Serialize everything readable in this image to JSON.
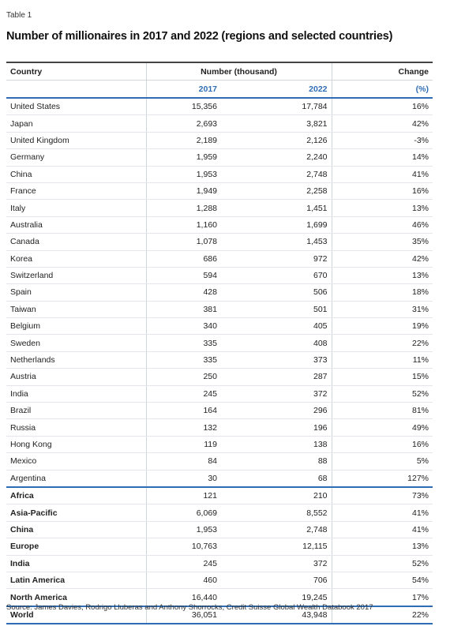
{
  "table_label": "Table 1",
  "title": "Number of millionaires in 2017 and 2022 (regions and selected countries)",
  "header": {
    "country": "Country",
    "number": "Number (thousand)",
    "change": "Change"
  },
  "subheader": [
    "2017",
    "2022",
    "(%)"
  ],
  "countries": [
    [
      "United States",
      "15,356",
      "17,784",
      "16%"
    ],
    [
      "Japan",
      "2,693",
      "3,821",
      "42%"
    ],
    [
      "United Kingdom",
      "2,189",
      "2,126",
      "-3%"
    ],
    [
      "Germany",
      "1,959",
      "2,240",
      "14%"
    ],
    [
      "China",
      "1,953",
      "2,748",
      "41%"
    ],
    [
      "France",
      "1,949",
      "2,258",
      "16%"
    ],
    [
      "Italy",
      "1,288",
      "1,451",
      "13%"
    ],
    [
      "Australia",
      "1,160",
      "1,699",
      "46%"
    ],
    [
      "Canada",
      "1,078",
      "1,453",
      "35%"
    ],
    [
      "Korea",
      "686",
      "972",
      "42%"
    ],
    [
      "Switzerland",
      "594",
      "670",
      "13%"
    ],
    [
      "Spain",
      "428",
      "506",
      "18%"
    ],
    [
      "Taiwan",
      "381",
      "501",
      "31%"
    ],
    [
      "Belgium",
      "340",
      "405",
      "19%"
    ],
    [
      "Sweden",
      "335",
      "408",
      "22%"
    ],
    [
      "Netherlands",
      "335",
      "373",
      "11%"
    ],
    [
      "Austria",
      "250",
      "287",
      "15%"
    ],
    [
      "India",
      "245",
      "372",
      "52%"
    ],
    [
      "Brazil",
      "164",
      "296",
      "81%"
    ],
    [
      "Russia",
      "132",
      "196",
      "49%"
    ],
    [
      "Hong Kong",
      "119",
      "138",
      "16%"
    ],
    [
      "Mexico",
      "84",
      "88",
      "5%"
    ],
    [
      "Argentina",
      "30",
      "68",
      "127%"
    ]
  ],
  "regions": [
    [
      "Africa",
      "121",
      "210",
      "73%"
    ],
    [
      "Asia-Pacific",
      "6,069",
      "8,552",
      "41%"
    ],
    [
      "China",
      "1,953",
      "2,748",
      "41%"
    ],
    [
      "Europe",
      "10,763",
      "12,115",
      "13%"
    ],
    [
      "India",
      "245",
      "372",
      "52%"
    ],
    [
      "Latin America",
      "460",
      "706",
      "54%"
    ],
    [
      "North America",
      "16,440",
      "19,245",
      "17%"
    ]
  ],
  "world": [
    "World",
    "36,051",
    "43,948",
    "22%"
  ],
  "source": "Source: James Davies, Rodrigo Lluberas and Anthony Shorrocks, Credit Suisse Global Wealth Databook 2017"
}
